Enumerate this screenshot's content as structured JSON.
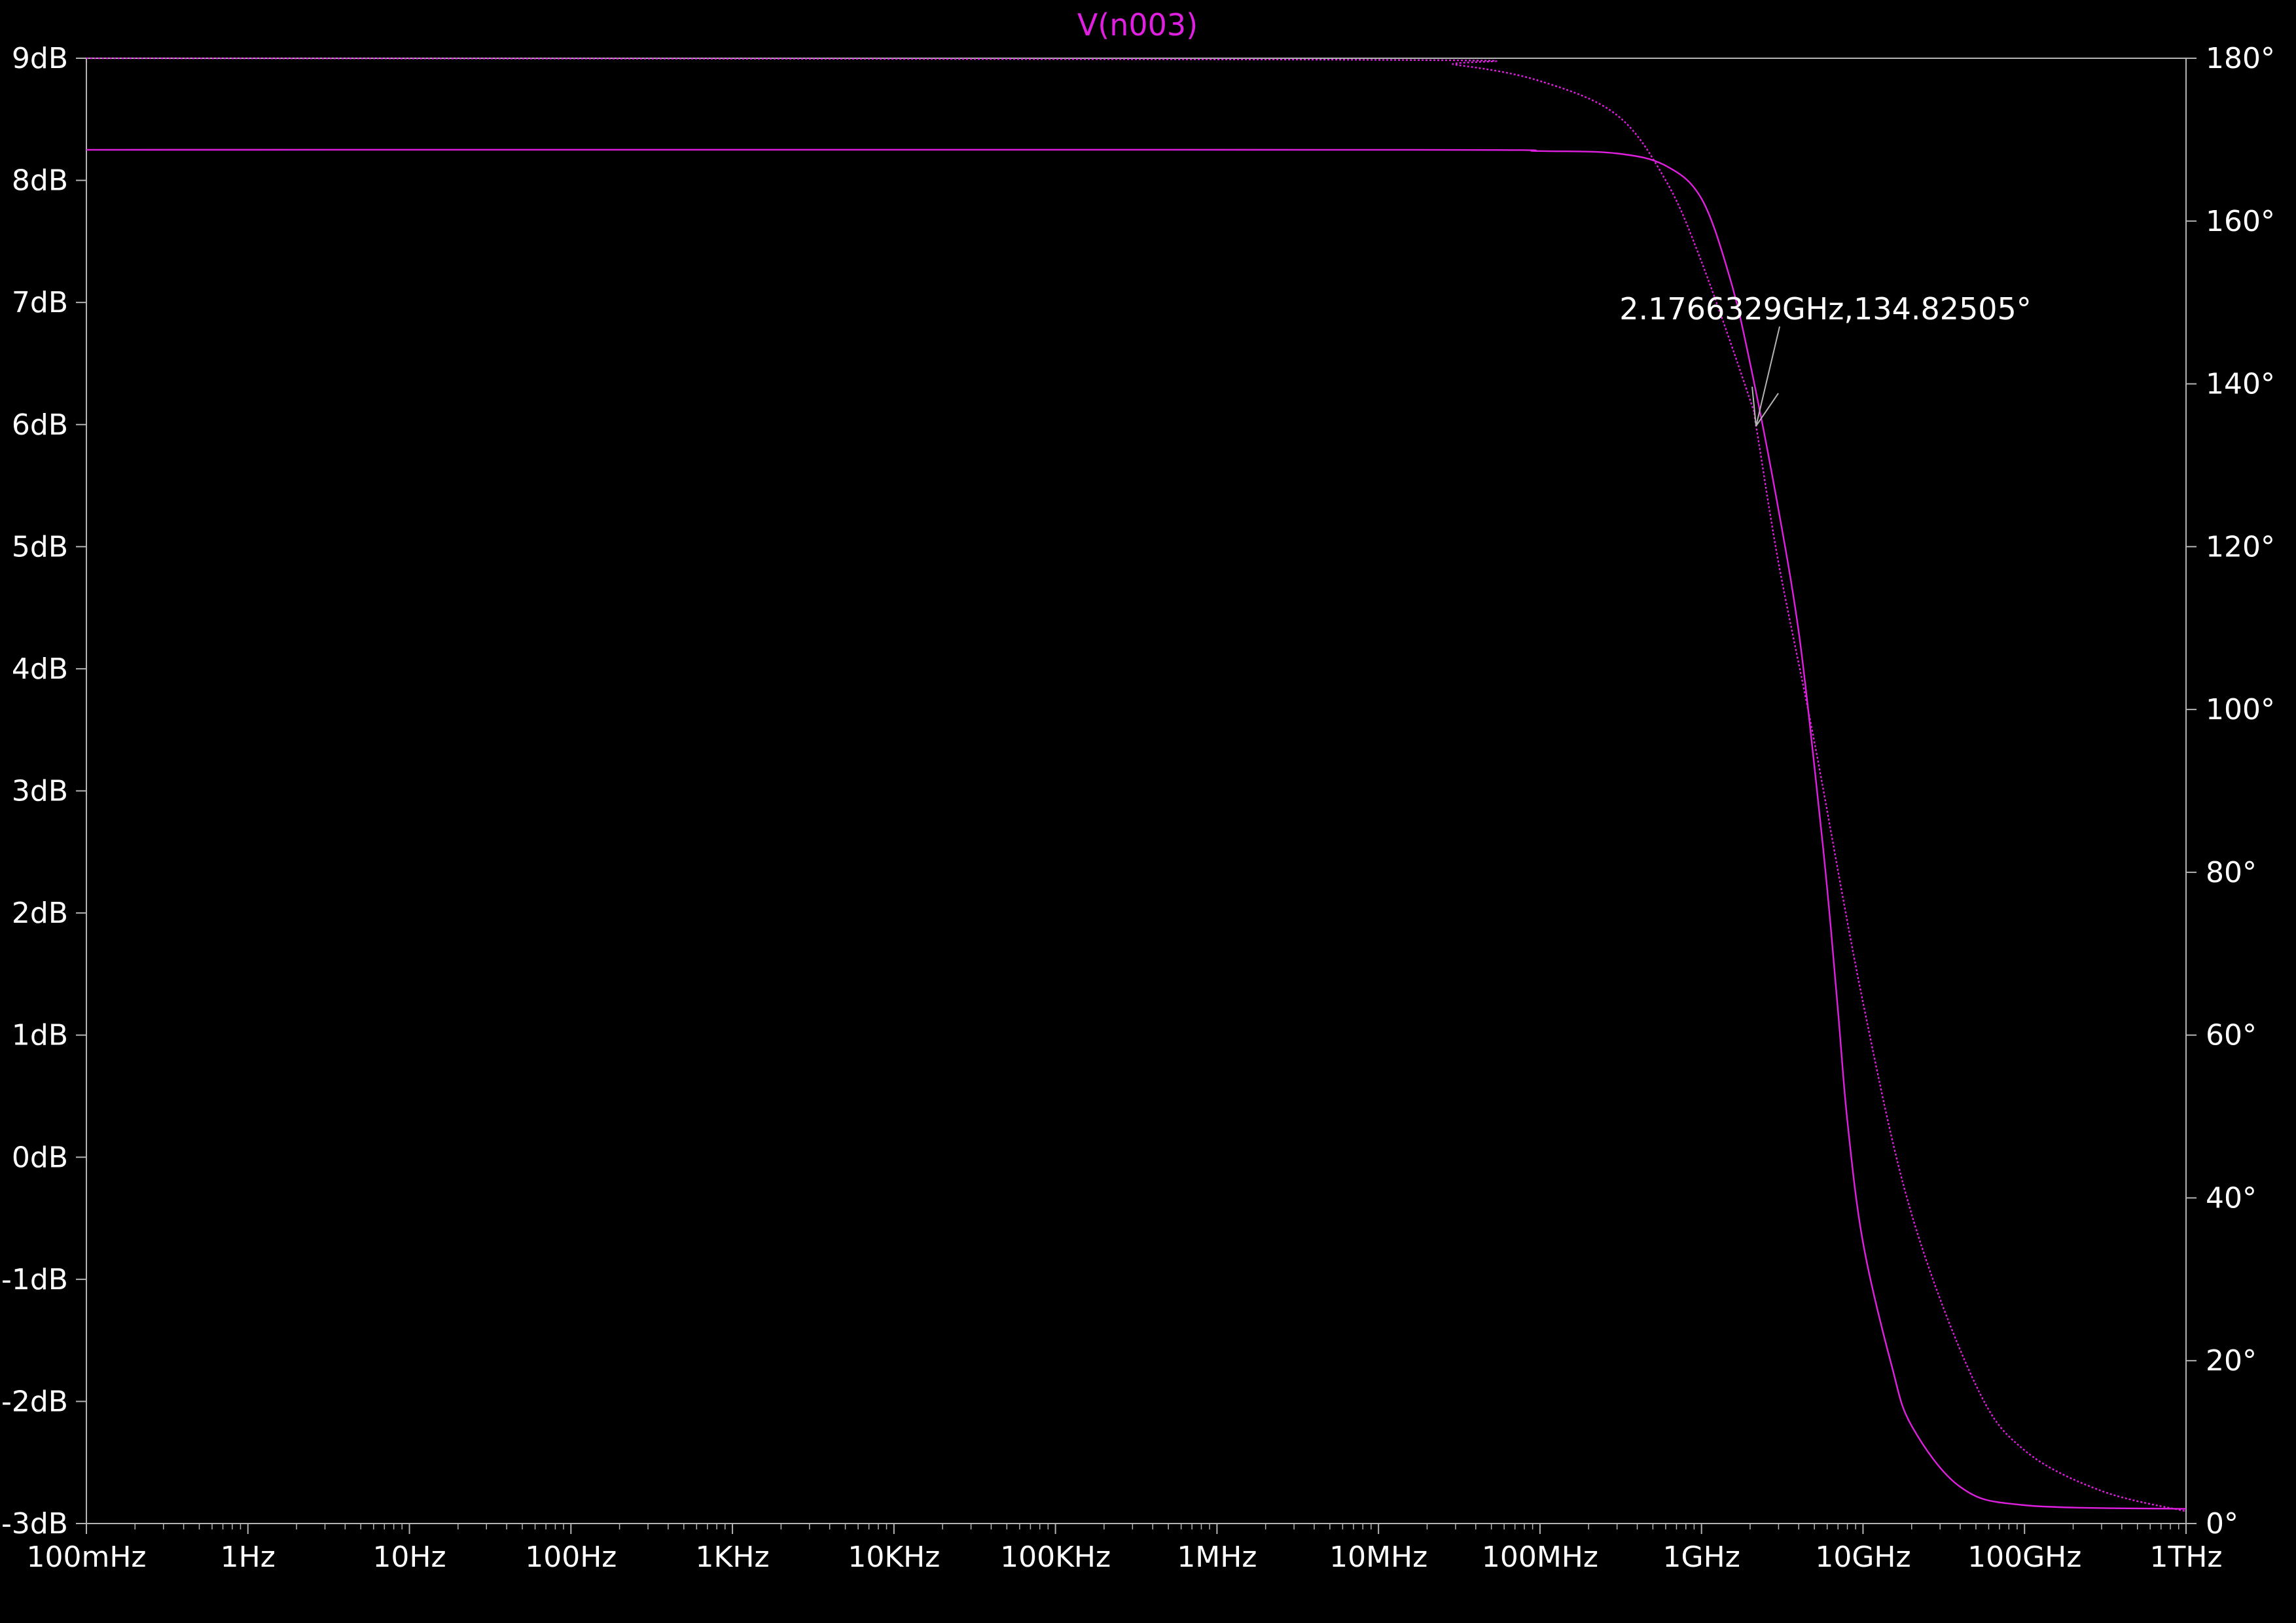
{
  "window": {
    "trace_title": "V(n003)"
  },
  "colors": {
    "background": "#000000",
    "axis": "#b4b4b4",
    "text": "#ffffff",
    "trace": "#e020e0"
  },
  "chart_data": {
    "type": "line",
    "title": "V(n003)",
    "xscale": "log",
    "xlim_hz": [
      0.1,
      1000000000000
    ],
    "x_ticks": [
      {
        "label": "100mHz",
        "hz": 0.1
      },
      {
        "label": "1Hz",
        "hz": 1
      },
      {
        "label": "10Hz",
        "hz": 10
      },
      {
        "label": "100Hz",
        "hz": 100
      },
      {
        "label": "1KHz",
        "hz": 1000
      },
      {
        "label": "10KHz",
        "hz": 10000
      },
      {
        "label": "100KHz",
        "hz": 100000
      },
      {
        "label": "1MHz",
        "hz": 1000000
      },
      {
        "label": "10MHz",
        "hz": 10000000
      },
      {
        "label": "100MHz",
        "hz": 100000000
      },
      {
        "label": "1GHz",
        "hz": 1000000000
      },
      {
        "label": "10GHz",
        "hz": 10000000000
      },
      {
        "label": "100GHz",
        "hz": 100000000000
      },
      {
        "label": "1THz",
        "hz": 1000000000000
      }
    ],
    "ylim_left_db": [
      -3,
      9
    ],
    "y_left_ticks": [
      {
        "label": "9dB",
        "value": 9
      },
      {
        "label": "8dB",
        "value": 8
      },
      {
        "label": "7dB",
        "value": 7
      },
      {
        "label": "6dB",
        "value": 6
      },
      {
        "label": "5dB",
        "value": 5
      },
      {
        "label": "4dB",
        "value": 4
      },
      {
        "label": "3dB",
        "value": 3
      },
      {
        "label": "2dB",
        "value": 2
      },
      {
        "label": "1dB",
        "value": 1
      },
      {
        "label": "0dB",
        "value": 0
      },
      {
        "label": "-1dB",
        "value": -1
      },
      {
        "label": "-2dB",
        "value": -2
      },
      {
        "label": "-3dB",
        "value": -3
      }
    ],
    "ylim_right_deg": [
      0,
      180
    ],
    "y_right_ticks": [
      {
        "label": "180°",
        "value": 180
      },
      {
        "label": "160°",
        "value": 160
      },
      {
        "label": "140°",
        "value": 140
      },
      {
        "label": "120°",
        "value": 120
      },
      {
        "label": "100°",
        "value": 100
      },
      {
        "label": "80°",
        "value": 80
      },
      {
        "label": "60°",
        "value": 60
      },
      {
        "label": "40°",
        "value": 40
      },
      {
        "label": "20°",
        "value": 20
      },
      {
        "label": "0°",
        "value": 0
      }
    ],
    "series": [
      {
        "style": "solid",
        "axis": "left",
        "points": [
          {
            "hz": 0.1,
            "db": 8.25
          },
          {
            "hz": 10000000,
            "db": 8.25
          },
          {
            "hz": 100000000,
            "db": 8.24
          },
          {
            "hz": 300000000,
            "db": 8.22
          },
          {
            "hz": 600000000,
            "db": 8.12
          },
          {
            "hz": 1000000000,
            "db": 7.85
          },
          {
            "hz": 1500000000,
            "db": 7.2
          },
          {
            "hz": 2000000000,
            "db": 6.5
          },
          {
            "hz": 3000000000,
            "db": 5.3
          },
          {
            "hz": 4000000000,
            "db": 4.3
          },
          {
            "hz": 5000000000,
            "db": 3.2
          },
          {
            "hz": 6000000000,
            "db": 2.2
          },
          {
            "hz": 7000000000,
            "db": 1.2
          },
          {
            "hz": 8000000000,
            "db": 0.3
          },
          {
            "hz": 10000000000,
            "db": -0.7
          },
          {
            "hz": 15000000000,
            "db": -1.7
          },
          {
            "hz": 20000000000,
            "db": -2.2
          },
          {
            "hz": 40000000000,
            "db": -2.7
          },
          {
            "hz": 100000000000,
            "db": -2.85
          },
          {
            "hz": 1000000000000,
            "db": -2.88
          }
        ]
      },
      {
        "style": "dotted",
        "axis": "right",
        "points": [
          {
            "hz": 0.1,
            "deg": 180
          },
          {
            "hz": 10000000,
            "deg": 179.8
          },
          {
            "hz": 30000000,
            "deg": 179.2
          },
          {
            "hz": 100000000,
            "deg": 177.2
          },
          {
            "hz": 300000000,
            "deg": 173
          },
          {
            "hz": 600000000,
            "deg": 165
          },
          {
            "hz": 1000000000,
            "deg": 155
          },
          {
            "hz": 2000000000,
            "deg": 138
          },
          {
            "hz": 2176632900,
            "deg": 134.82505
          },
          {
            "hz": 3000000000,
            "deg": 118
          },
          {
            "hz": 5000000000,
            "deg": 96
          },
          {
            "hz": 10000000000,
            "deg": 64
          },
          {
            "hz": 20000000000,
            "deg": 38
          },
          {
            "hz": 50000000000,
            "deg": 17
          },
          {
            "hz": 100000000000,
            "deg": 9
          },
          {
            "hz": 300000000000,
            "deg": 4
          },
          {
            "hz": 1000000000000,
            "deg": 1.5
          }
        ]
      }
    ],
    "cursor": {
      "label": "2.1766329GHz,134.82505°",
      "hz": 2176632900,
      "deg": 134.82505
    }
  }
}
